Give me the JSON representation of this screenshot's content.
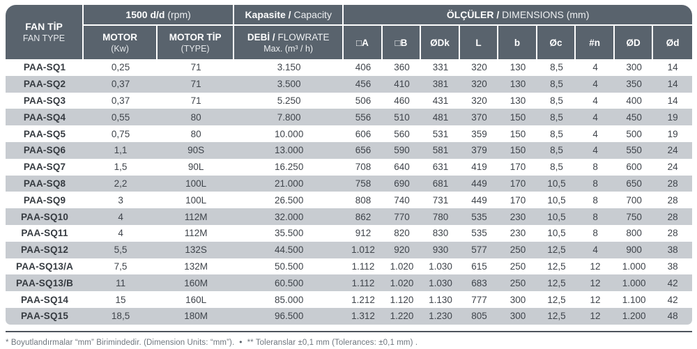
{
  "table": {
    "header": {
      "fan_type": {
        "title": "FAN TİP",
        "subtitle": "FAN TYPE"
      },
      "rpm_group": {
        "bold": "1500 d/d",
        "normal": "(rpm)"
      },
      "motor": {
        "title": "MOTOR",
        "unit": "(Kw)"
      },
      "motor_type": {
        "title": "MOTOR TİP",
        "unit": "(TYPE)"
      },
      "capacity_group": {
        "bold": "Kapasite /",
        "normal": "Capacity"
      },
      "flowrate": {
        "bold": "DEBİ /",
        "normal": "FLOWRATE",
        "sub": "Max. (m³ / h)"
      },
      "dimensions_group": {
        "bold": "ÖLÇÜLER /",
        "normal": "DIMENSIONS (mm)"
      },
      "dimension_columns": [
        "□A",
        "□B",
        "ØDk",
        "L",
        "b",
        "Øc",
        "#n",
        "ØD",
        "Ød"
      ]
    },
    "rows": [
      {
        "fan_type": "PAA-SQ1",
        "motor_kw": "0,25",
        "motor_type": "71",
        "flowrate": "3.150",
        "dims": [
          "406",
          "360",
          "331",
          "320",
          "130",
          "8,5",
          "4",
          "300",
          "14"
        ]
      },
      {
        "fan_type": "PAA-SQ2",
        "motor_kw": "0,37",
        "motor_type": "71",
        "flowrate": "3.500",
        "dims": [
          "456",
          "410",
          "381",
          "320",
          "130",
          "8,5",
          "4",
          "350",
          "14"
        ]
      },
      {
        "fan_type": "PAA-SQ3",
        "motor_kw": "0,37",
        "motor_type": "71",
        "flowrate": "5.250",
        "dims": [
          "506",
          "460",
          "431",
          "320",
          "130",
          "8,5",
          "4",
          "400",
          "14"
        ]
      },
      {
        "fan_type": "PAA-SQ4",
        "motor_kw": "0,55",
        "motor_type": "80",
        "flowrate": "7.800",
        "dims": [
          "556",
          "510",
          "481",
          "370",
          "150",
          "8,5",
          "4",
          "450",
          "19"
        ]
      },
      {
        "fan_type": "PAA-SQ5",
        "motor_kw": "0,75",
        "motor_type": "80",
        "flowrate": "10.000",
        "dims": [
          "606",
          "560",
          "531",
          "359",
          "150",
          "8,5",
          "4",
          "500",
          "19"
        ]
      },
      {
        "fan_type": "PAA-SQ6",
        "motor_kw": "1,1",
        "motor_type": "90S",
        "flowrate": "13.000",
        "dims": [
          "656",
          "590",
          "581",
          "379",
          "150",
          "8,5",
          "4",
          "550",
          "24"
        ]
      },
      {
        "fan_type": "PAA-SQ7",
        "motor_kw": "1,5",
        "motor_type": "90L",
        "flowrate": "16.250",
        "dims": [
          "708",
          "640",
          "631",
          "419",
          "170",
          "8,5",
          "8",
          "600",
          "24"
        ]
      },
      {
        "fan_type": "PAA-SQ8",
        "motor_kw": "2,2",
        "motor_type": "100L",
        "flowrate": "21.000",
        "dims": [
          "758",
          "690",
          "681",
          "449",
          "170",
          "10,5",
          "8",
          "650",
          "28"
        ]
      },
      {
        "fan_type": "PAA-SQ9",
        "motor_kw": "3",
        "motor_type": "100L",
        "flowrate": "26.500",
        "dims": [
          "808",
          "740",
          "731",
          "449",
          "170",
          "10,5",
          "8",
          "700",
          "28"
        ]
      },
      {
        "fan_type": "PAA-SQ10",
        "motor_kw": "4",
        "motor_type": "112M",
        "flowrate": "32.000",
        "dims": [
          "862",
          "770",
          "780",
          "535",
          "230",
          "10,5",
          "8",
          "750",
          "28"
        ]
      },
      {
        "fan_type": "PAA-SQ11",
        "motor_kw": "4",
        "motor_type": "112M",
        "flowrate": "35.500",
        "dims": [
          "912",
          "820",
          "830",
          "535",
          "230",
          "10,5",
          "8",
          "800",
          "28"
        ]
      },
      {
        "fan_type": "PAA-SQ12",
        "motor_kw": "5,5",
        "motor_type": "132S",
        "flowrate": "44.500",
        "dims": [
          "1.012",
          "920",
          "930",
          "577",
          "250",
          "12,5",
          "4",
          "900",
          "38"
        ]
      },
      {
        "fan_type": "PAA-SQ13/A",
        "motor_kw": "7,5",
        "motor_type": "132M",
        "flowrate": "50.500",
        "dims": [
          "1.112",
          "1.020",
          "1.030",
          "615",
          "250",
          "12,5",
          "12",
          "1.000",
          "38"
        ]
      },
      {
        "fan_type": "PAA-SQ13/B",
        "motor_kw": "11",
        "motor_type": "160M",
        "flowrate": "60.500",
        "dims": [
          "1.112",
          "1.020",
          "1.030",
          "683",
          "250",
          "12,5",
          "12",
          "1.000",
          "42"
        ]
      },
      {
        "fan_type": "PAA-SQ14",
        "motor_kw": "15",
        "motor_type": "160L",
        "flowrate": "85.000",
        "dims": [
          "1.212",
          "1.120",
          "1.130",
          "777",
          "300",
          "12,5",
          "12",
          "1.100",
          "42"
        ]
      },
      {
        "fan_type": "PAA-SQ15",
        "motor_kw": "18,5",
        "motor_type": "180M",
        "flowrate": "96.500",
        "dims": [
          "1.312",
          "1.220",
          "1.230",
          "805",
          "300",
          "12,5",
          "12",
          "1.200",
          "48"
        ]
      }
    ]
  },
  "footnote": {
    "unit_note": "* Boyutlandırmalar “mm” Birimindedir. (Dimension Units: “mm”).",
    "separator": "•",
    "tolerance_note": "** Toleranslar ±0,1 mm (Tolerances: ±0,1 mm) ."
  },
  "colors": {
    "header_bg": "#59636d",
    "row_stripe": "#c8ccd1",
    "body_text": "#3f444b",
    "footnote_text": "#6e767e"
  }
}
